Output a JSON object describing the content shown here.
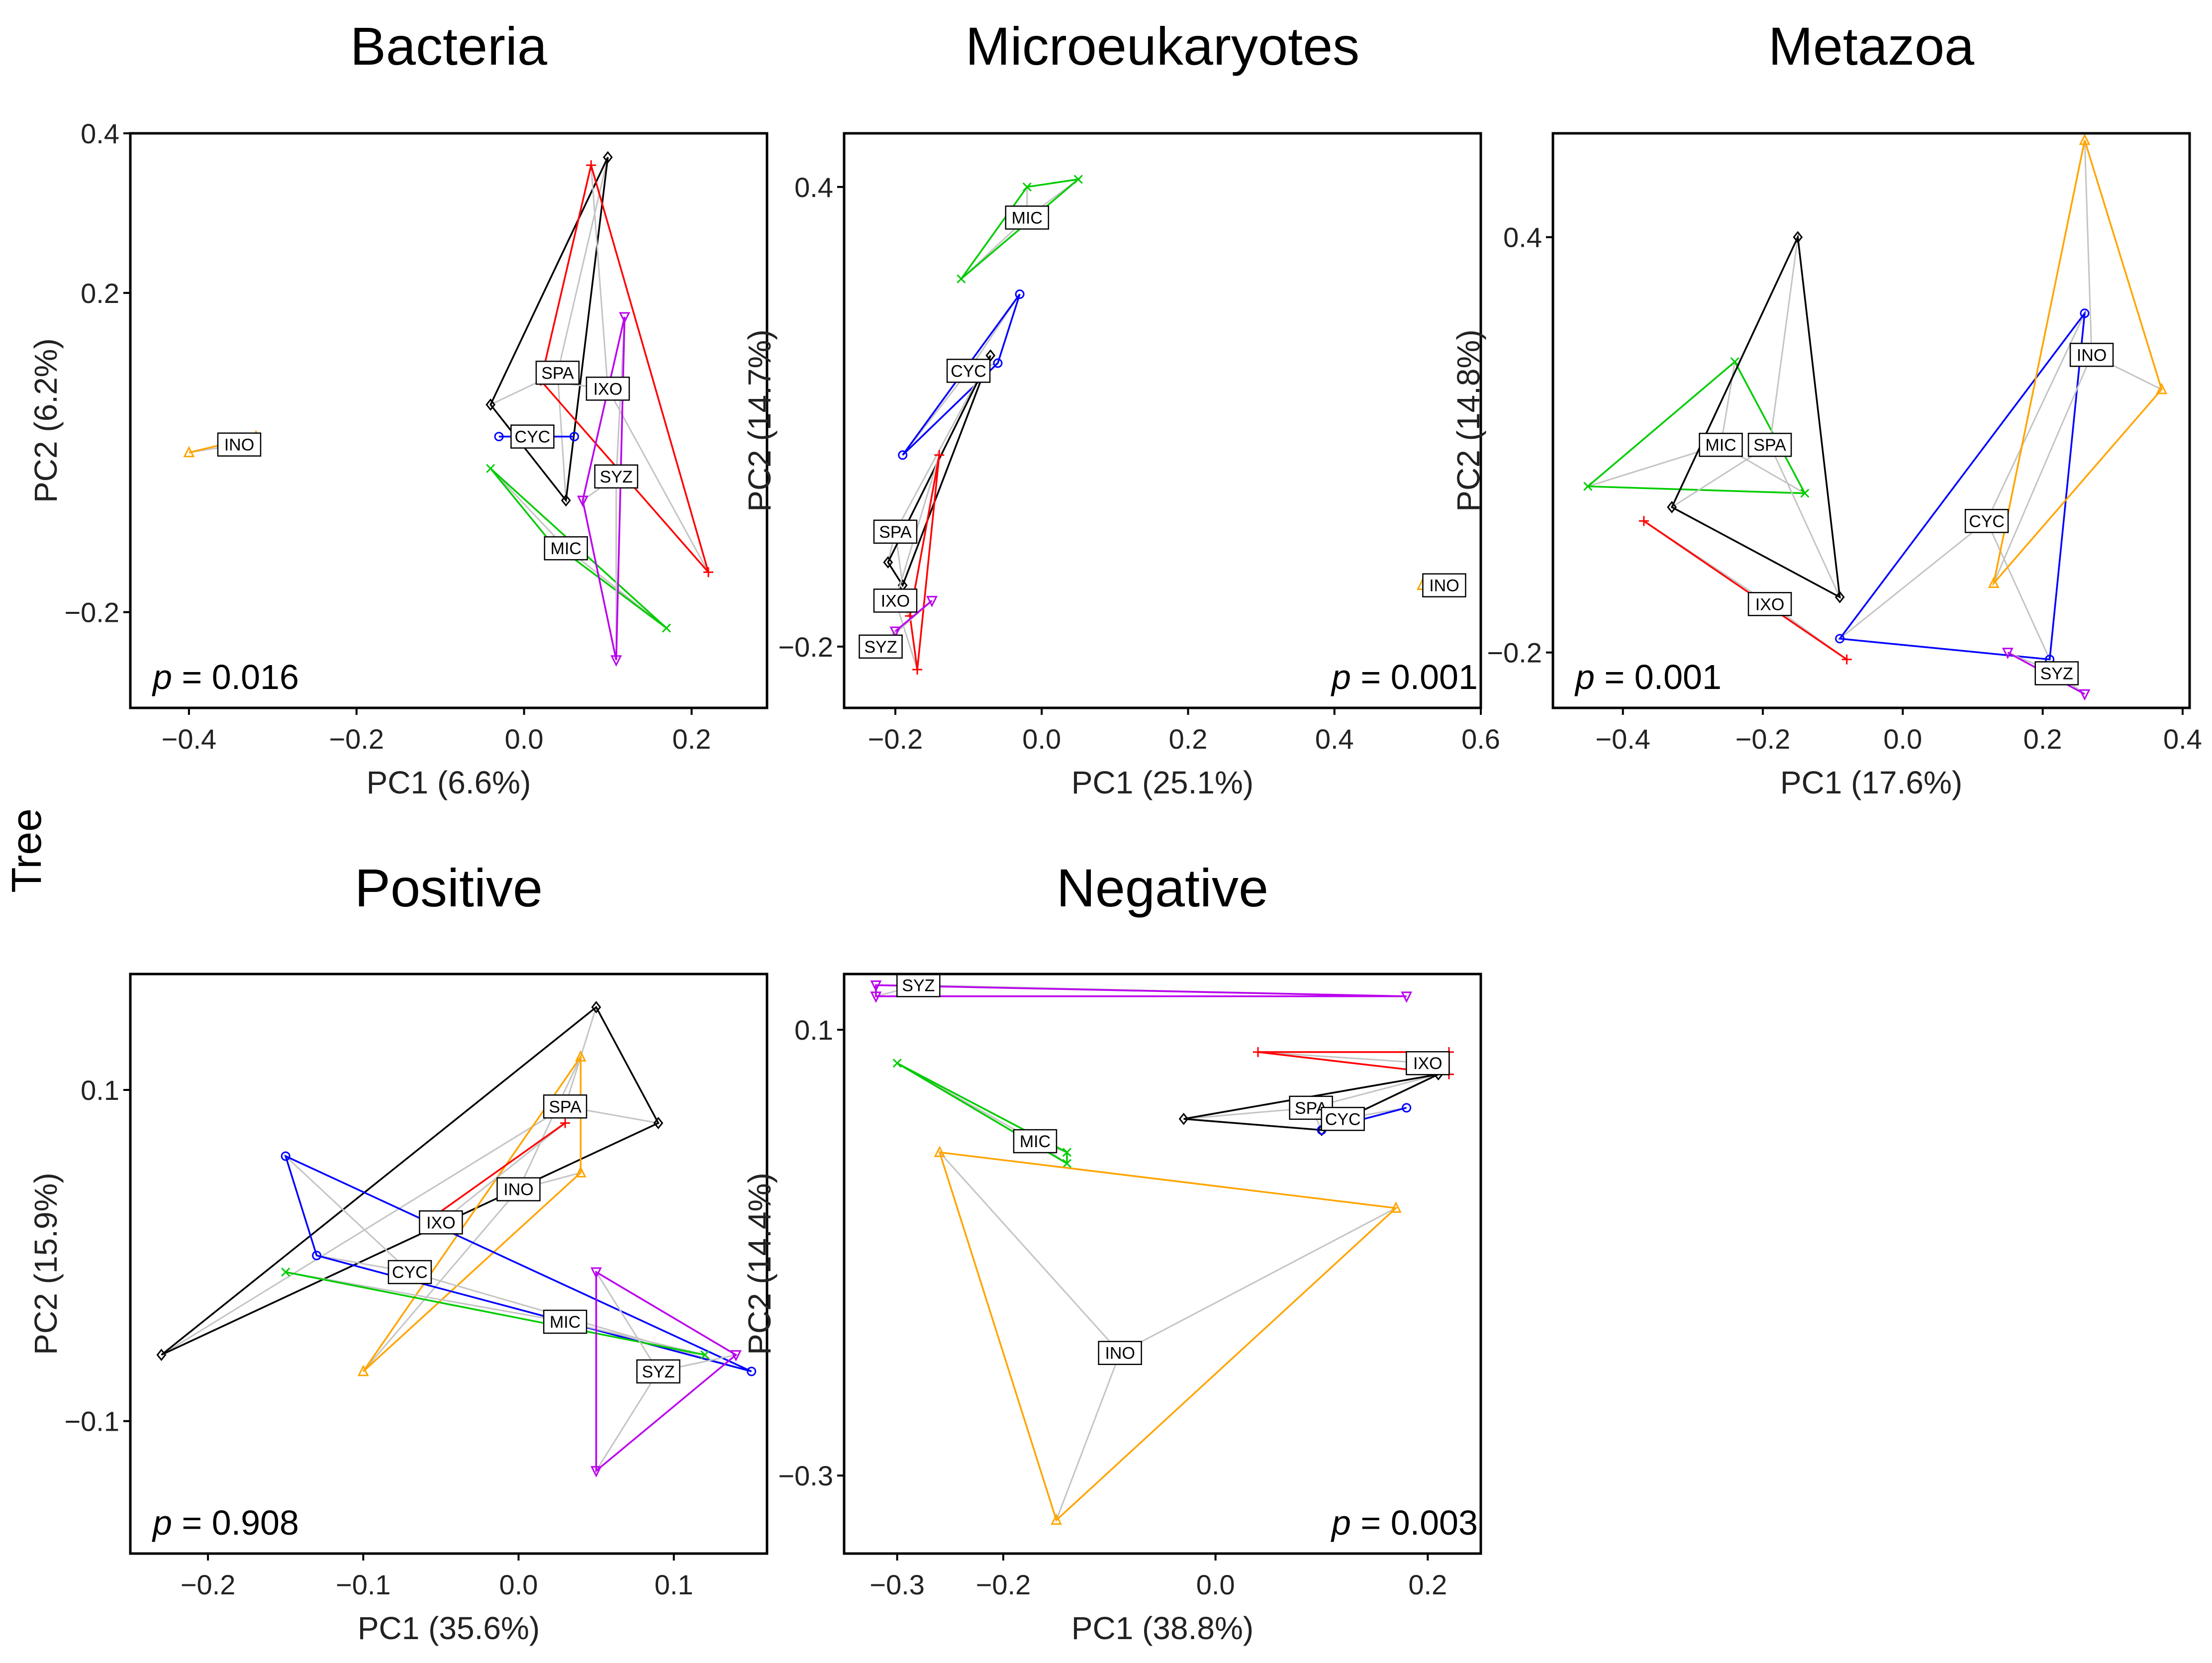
{
  "row_label": "Tree",
  "groups": [
    {
      "code": "SPA",
      "color": "#000000",
      "marker": "diamond"
    },
    {
      "code": "IXO",
      "color": "#ff0000",
      "marker": "plus"
    },
    {
      "code": "CYC",
      "color": "#0000ff",
      "marker": "circle"
    },
    {
      "code": "MIC",
      "color": "#00cc00",
      "marker": "x"
    },
    {
      "code": "SYZ",
      "color": "#bb00ee",
      "marker": "triangle-down"
    },
    {
      "code": "INO",
      "color": "#ffa500",
      "marker": "triangle-up"
    }
  ],
  "chart_data": [
    {
      "type": "scatter",
      "title": "Bacteria",
      "xlabel": "PC1 (6.6%)",
      "ylabel": "PC2 (6.2%)",
      "xlim": [
        -0.47,
        0.29
      ],
      "ylim": [
        -0.32,
        0.4
      ],
      "xticks": [
        -0.4,
        -0.2,
        0.0,
        0.2
      ],
      "xtick_labels": [
        "−0.4",
        "−0.2",
        "0.0",
        "0.2"
      ],
      "yticks": [
        -0.2,
        0.2,
        0.4
      ],
      "ytick_labels": [
        "−0.2",
        "0.2",
        "0.4"
      ],
      "p_label": "p",
      "p_value": "= 0.016",
      "series": [
        {
          "name": "SPA",
          "centroid": [
            0.04,
            0.1
          ],
          "hull": [
            [
              0.1,
              0.37
            ],
            [
              -0.04,
              0.06
            ],
            [
              0.05,
              -0.06
            ]
          ]
        },
        {
          "name": "IXO",
          "centroid": [
            0.1,
            0.08
          ],
          "hull": [
            [
              0.08,
              0.36
            ],
            [
              0.22,
              -0.15
            ],
            [
              0.02,
              0.09
            ]
          ]
        },
        {
          "name": "CYC",
          "centroid": [
            0.01,
            0.02
          ],
          "hull": [
            [
              -0.03,
              0.02
            ],
            [
              0.06,
              0.02
            ]
          ]
        },
        {
          "name": "MIC",
          "centroid": [
            0.05,
            -0.12
          ],
          "hull": [
            [
              -0.04,
              -0.02
            ],
            [
              0.03,
              -0.11
            ],
            [
              0.17,
              -0.22
            ]
          ]
        },
        {
          "name": "SYZ",
          "centroid": [
            0.11,
            -0.03
          ],
          "hull": [
            [
              0.12,
              0.17
            ],
            [
              0.07,
              -0.06
            ],
            [
              0.11,
              -0.26
            ]
          ]
        },
        {
          "name": "INO",
          "centroid": [
            -0.34,
            0.01
          ],
          "hull": [
            [
              -0.4,
              0.0
            ],
            [
              -0.32,
              0.02
            ]
          ]
        }
      ]
    },
    {
      "type": "scatter",
      "title": "Microeukaryotes",
      "xlabel": "PC1 (25.1%)",
      "ylabel": "PC2 (14.7%)",
      "xlim": [
        -0.27,
        0.6
      ],
      "ylim": [
        -0.28,
        0.47
      ],
      "xticks": [
        -0.2,
        0.0,
        0.2,
        0.4,
        0.6
      ],
      "xtick_labels": [
        "−0.2",
        "0.0",
        "0.2",
        "0.4",
        "0.6"
      ],
      "yticks": [
        -0.2,
        0.4
      ],
      "ytick_labels": [
        "−0.2",
        "0.4"
      ],
      "p_label": "p",
      "p_value": "= 0.001",
      "series": [
        {
          "name": "MIC",
          "centroid": [
            -0.02,
            0.36
          ],
          "hull": [
            [
              -0.02,
              0.4
            ],
            [
              0.05,
              0.41
            ],
            [
              -0.11,
              0.28
            ]
          ]
        },
        {
          "name": "CYC",
          "centroid": [
            -0.1,
            0.16
          ],
          "hull": [
            [
              -0.03,
              0.26
            ],
            [
              -0.19,
              0.05
            ],
            [
              -0.06,
              0.17
            ]
          ]
        },
        {
          "name": "SPA",
          "centroid": [
            -0.2,
            -0.05
          ],
          "hull": [
            [
              -0.07,
              0.18
            ],
            [
              -0.21,
              -0.09
            ],
            [
              -0.19,
              -0.12
            ]
          ]
        },
        {
          "name": "IXO",
          "centroid": [
            -0.2,
            -0.14
          ],
          "hull": [
            [
              -0.14,
              0.05
            ],
            [
              -0.18,
              -0.16
            ],
            [
              -0.17,
              -0.23
            ]
          ]
        },
        {
          "name": "SYZ",
          "centroid": [
            -0.22,
            -0.2
          ],
          "hull": [
            [
              -0.2,
              -0.18
            ],
            [
              -0.15,
              -0.14
            ]
          ]
        },
        {
          "name": "INO",
          "centroid": [
            0.55,
            -0.12
          ],
          "hull": [
            [
              0.52,
              -0.12
            ]
          ]
        }
      ]
    },
    {
      "type": "scatter",
      "title": "Metazoa",
      "xlabel": "PC1 (17.6%)",
      "ylabel": "PC2 (14.8%)",
      "xlim": [
        -0.5,
        0.41
      ],
      "ylim": [
        -0.28,
        0.55
      ],
      "xticks": [
        -0.4,
        -0.2,
        0.0,
        0.2,
        0.4
      ],
      "xtick_labels": [
        "−0.4",
        "−0.2",
        "0.0",
        "0.2",
        "0.4"
      ],
      "yticks": [
        -0.2,
        0.4
      ],
      "ytick_labels": [
        "−0.2",
        "0.4"
      ],
      "p_label": "p",
      "p_value": "= 0.001",
      "series": [
        {
          "name": "MIC",
          "centroid": [
            -0.26,
            0.1
          ],
          "hull": [
            [
              -0.24,
              0.22
            ],
            [
              -0.45,
              0.04
            ],
            [
              -0.14,
              0.03
            ]
          ]
        },
        {
          "name": "SPA",
          "centroid": [
            -0.19,
            0.1
          ],
          "hull": [
            [
              -0.15,
              0.4
            ],
            [
              -0.33,
              0.01
            ],
            [
              -0.09,
              -0.12
            ]
          ]
        },
        {
          "name": "IXO",
          "centroid": [
            -0.19,
            -0.13
          ],
          "hull": [
            [
              -0.37,
              -0.01
            ],
            [
              -0.08,
              -0.21
            ]
          ]
        },
        {
          "name": "CYC",
          "centroid": [
            0.12,
            -0.01
          ],
          "hull": [
            [
              0.26,
              0.29
            ],
            [
              -0.09,
              -0.18
            ],
            [
              0.21,
              -0.21
            ]
          ]
        },
        {
          "name": "INO",
          "centroid": [
            0.27,
            0.23
          ],
          "hull": [
            [
              0.26,
              0.54
            ],
            [
              0.37,
              0.18
            ],
            [
              0.13,
              -0.1
            ]
          ]
        },
        {
          "name": "SYZ",
          "centroid": [
            0.22,
            -0.23
          ],
          "hull": [
            [
              0.15,
              -0.2
            ],
            [
              0.26,
              -0.26
            ]
          ]
        }
      ]
    },
    {
      "type": "scatter",
      "title": "Positive",
      "xlabel": "PC1 (35.6%)",
      "ylabel": "PC2 (15.9%)",
      "xlim": [
        -0.25,
        0.16
      ],
      "ylim": [
        -0.18,
        0.17
      ],
      "xticks": [
        -0.2,
        -0.1,
        0.0,
        0.1
      ],
      "xtick_labels": [
        "−0.2",
        "−0.1",
        "0.0",
        "0.1"
      ],
      "yticks": [
        -0.1,
        0.1
      ],
      "ytick_labels": [
        "−0.1",
        "0.1"
      ],
      "p_label": "p",
      "p_value": "= 0.908",
      "series": [
        {
          "name": "SPA",
          "centroid": [
            0.03,
            0.09
          ],
          "hull": [
            [
              0.05,
              0.15
            ],
            [
              -0.23,
              -0.06
            ],
            [
              0.09,
              0.08
            ]
          ]
        },
        {
          "name": "INO",
          "centroid": [
            0.0,
            0.04
          ],
          "hull": [
            [
              0.04,
              0.12
            ],
            [
              -0.1,
              -0.07
            ],
            [
              0.04,
              0.05
            ]
          ]
        },
        {
          "name": "IXO",
          "centroid": [
            -0.05,
            0.02
          ],
          "hull": [
            [
              -0.06,
              0.02
            ],
            [
              0.03,
              0.08
            ]
          ]
        },
        {
          "name": "CYC",
          "centroid": [
            -0.07,
            -0.01
          ],
          "hull": [
            [
              -0.15,
              0.06
            ],
            [
              -0.13,
              0.0
            ],
            [
              0.15,
              -0.07
            ]
          ]
        },
        {
          "name": "MIC",
          "centroid": [
            0.03,
            -0.04
          ],
          "hull": [
            [
              -0.15,
              -0.01
            ],
            [
              0.12,
              -0.06
            ]
          ]
        },
        {
          "name": "SYZ",
          "centroid": [
            0.09,
            -0.07
          ],
          "hull": [
            [
              0.05,
              -0.01
            ],
            [
              0.14,
              -0.06
            ],
            [
              0.05,
              -0.13
            ]
          ]
        }
      ]
    },
    {
      "type": "scatter",
      "title": "Negative",
      "xlabel": "PC1 (38.8%)",
      "ylabel": "PC2 (14.4%)",
      "xlim": [
        -0.35,
        0.25
      ],
      "ylim": [
        -0.37,
        0.15
      ],
      "xticks": [
        -0.3,
        -0.2,
        0.0,
        0.2
      ],
      "xtick_labels": [
        "−0.3",
        "−0.2",
        "0.0",
        "0.2"
      ],
      "yticks": [
        -0.3,
        0.1
      ],
      "ytick_labels": [
        "−0.3",
        "0.1"
      ],
      "p_label": "p",
      "p_value": "= 0.003",
      "series": [
        {
          "name": "SYZ",
          "centroid": [
            -0.28,
            0.14
          ],
          "hull": [
            [
              -0.32,
              0.14
            ],
            [
              -0.32,
              0.13
            ],
            [
              0.18,
              0.13
            ]
          ]
        },
        {
          "name": "IXO",
          "centroid": [
            0.2,
            0.07
          ],
          "hull": [
            [
              0.04,
              0.08
            ],
            [
              0.22,
              0.08
            ],
            [
              0.22,
              0.06
            ]
          ]
        },
        {
          "name": "SPA",
          "centroid": [
            0.09,
            0.03
          ],
          "hull": [
            [
              -0.03,
              0.02
            ],
            [
              0.21,
              0.06
            ],
            [
              0.1,
              0.01
            ]
          ]
        },
        {
          "name": "CYC",
          "centroid": [
            0.12,
            0.02
          ],
          "hull": [
            [
              0.1,
              0.01
            ],
            [
              0.18,
              0.03
            ]
          ]
        },
        {
          "name": "MIC",
          "centroid": [
            -0.17,
            0.0
          ],
          "hull": [
            [
              -0.3,
              0.07
            ],
            [
              -0.14,
              -0.01
            ],
            [
              -0.14,
              -0.02
            ]
          ]
        },
        {
          "name": "INO",
          "centroid": [
            -0.09,
            -0.19
          ],
          "hull": [
            [
              -0.26,
              -0.01
            ],
            [
              0.17,
              -0.06
            ],
            [
              -0.15,
              -0.34
            ]
          ]
        }
      ]
    }
  ]
}
